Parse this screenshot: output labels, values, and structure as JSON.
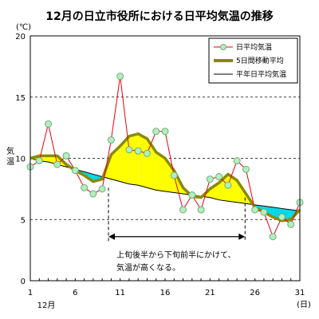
{
  "chart_data": {
    "type": "line",
    "title": "12月の日立市役所における日平均気温の推移",
    "ylabel": "気温",
    "yunit": "(℃)",
    "xunit": "(日)",
    "xmonth": "12月",
    "ylim": [
      0,
      20
    ],
    "xlim": [
      1,
      31
    ],
    "yticks": [
      "0",
      "5",
      "10",
      "15",
      "20"
    ],
    "xticks": [
      {
        "x": 1,
        "label": "1"
      },
      {
        "x": 6,
        "label": "6"
      },
      {
        "x": 11,
        "label": "11"
      },
      {
        "x": 16,
        "label": "16"
      },
      {
        "x": 21,
        "label": "21"
      },
      {
        "x": 26,
        "label": "26"
      },
      {
        "x": 31,
        "label": "31"
      }
    ],
    "grid": "horizontal-dashed",
    "legend_position": "top-right",
    "legend": [
      {
        "name": "日平均気温",
        "key": "daily"
      },
      {
        "name": "5日間移動平均",
        "key": "moving"
      },
      {
        "name": "平年日平均気温",
        "key": "normal"
      }
    ],
    "x": [
      1,
      2,
      3,
      4,
      5,
      6,
      7,
      8,
      9,
      10,
      11,
      12,
      13,
      14,
      15,
      16,
      17,
      18,
      19,
      20,
      21,
      22,
      23,
      24,
      25,
      26,
      27,
      28,
      29,
      30,
      31
    ],
    "daily": [
      9.3,
      9.8,
      12.8,
      9.5,
      10.2,
      9.0,
      7.6,
      7.1,
      7.5,
      11.5,
      16.7,
      10.7,
      10.6,
      10.4,
      12.2,
      12.2,
      8.6,
      5.8,
      7.0,
      5.8,
      8.3,
      8.5,
      7.8,
      9.8,
      9.1,
      5.8,
      5.6,
      3.6,
      5.2,
      4.6,
      6.4
    ],
    "moving": [
      10.0,
      10.2,
      10.2,
      10.2,
      9.5,
      9.0,
      8.6,
      8.1,
      8.3,
      10.3,
      11.0,
      11.8,
      12.0,
      11.6,
      10.5,
      10.0,
      9.0,
      7.6,
      6.9,
      6.8,
      7.5,
      8.0,
      8.7,
      8.2,
      7.1,
      6.0,
      5.6,
      5.2,
      4.9,
      5.0,
      5.8
    ],
    "normal": [
      10.0,
      9.8,
      9.7,
      9.5,
      9.3,
      9.1,
      8.9,
      8.7,
      8.5,
      8.3,
      8.1,
      7.9,
      7.8,
      7.6,
      7.4,
      7.3,
      7.2,
      7.1,
      7.0,
      6.9,
      6.8,
      6.6,
      6.5,
      6.4,
      6.3,
      6.2,
      6.1,
      6.0,
      5.9,
      5.8,
      5.7
    ],
    "colors": {
      "daily_line": "#e8000b",
      "daily_marker_fill": "#b0f0c0",
      "daily_marker_stroke": "#78a878",
      "moving_line": "#8a8a00",
      "normal_line": "#000000",
      "warm_fill": "#ffff00",
      "cold_fill": "#00d8e8"
    },
    "annotation": {
      "line1": "上旬後半から下旬前半にかけて、",
      "line2": "気温が高くなる。",
      "from_x": 9.7,
      "to_x": 24.9,
      "at_y": 3.6
    }
  }
}
